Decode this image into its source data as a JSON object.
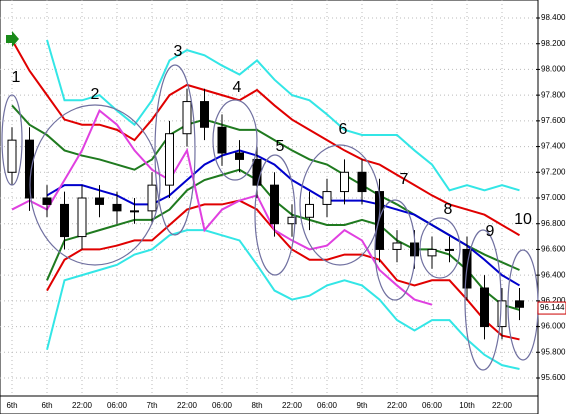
{
  "chart_data": {
    "type": "candlestick",
    "categories": [
      "6th",
      null,
      "6th",
      null,
      "22:00",
      null,
      "06:00",
      null,
      "7th",
      null,
      "22:00",
      null,
      "06:00",
      null,
      "8th",
      null,
      "22:00",
      null,
      "06:00",
      null,
      "9th",
      null,
      "22:00",
      null,
      "06:00",
      null,
      "10th",
      null,
      "22:00",
      null
    ],
    "open": [
      97.2,
      97.45,
      97.0,
      96.95,
      96.7,
      97.0,
      96.95,
      96.9,
      96.9,
      97.1,
      97.5,
      97.75,
      97.55,
      97.35,
      97.3,
      97.1,
      96.8,
      96.85,
      96.95,
      97.05,
      97.2,
      97.05,
      96.6,
      96.65,
      96.55,
      96.6,
      96.6,
      96.3,
      96.0,
      96.2
    ],
    "high": [
      97.55,
      97.55,
      97.1,
      97.05,
      97.1,
      97.1,
      97.05,
      97.0,
      97.2,
      97.6,
      97.85,
      97.85,
      97.65,
      97.45,
      97.4,
      97.2,
      96.95,
      97.05,
      97.15,
      97.3,
      97.3,
      97.15,
      96.75,
      96.75,
      96.7,
      96.7,
      96.7,
      96.4,
      96.3,
      96.3
    ],
    "low": [
      97.1,
      96.9,
      96.85,
      96.6,
      96.6,
      96.85,
      96.8,
      96.8,
      96.8,
      97.0,
      97.4,
      97.45,
      97.25,
      97.2,
      97.0,
      96.7,
      96.7,
      96.75,
      96.85,
      96.95,
      96.95,
      96.5,
      96.5,
      96.45,
      96.45,
      96.5,
      96.2,
      95.9,
      95.9,
      96.05
    ],
    "close": [
      97.45,
      97.0,
      96.95,
      96.7,
      97.0,
      96.95,
      96.9,
      96.9,
      97.1,
      97.5,
      97.75,
      97.55,
      97.35,
      97.3,
      97.1,
      96.8,
      96.85,
      96.95,
      97.05,
      97.2,
      97.05,
      96.6,
      96.65,
      96.55,
      96.6,
      96.6,
      96.3,
      96.0,
      96.2,
      96.15
    ],
    "series": [
      {
        "color": "#33e6e6",
        "values": [
          null,
          null,
          98.23,
          97.76,
          97.76,
          97.8,
          97.68,
          97.57,
          97.76,
          98.07,
          98.15,
          98.11,
          98.03,
          97.96,
          98.07,
          97.92,
          97.8,
          97.76,
          97.65,
          97.53,
          97.49,
          97.49,
          97.49,
          97.37,
          97.26,
          97.06,
          97.1,
          97.06,
          97.1,
          97.06
        ]
      },
      {
        "color": "#e00000",
        "values": [
          98.23,
          97.99,
          97.8,
          97.61,
          97.57,
          97.57,
          97.53,
          97.45,
          97.61,
          97.8,
          97.88,
          97.84,
          97.8,
          97.76,
          97.84,
          97.72,
          97.61,
          97.53,
          97.45,
          97.37,
          97.3,
          97.26,
          97.18,
          97.1,
          97.02,
          96.95,
          96.91,
          96.87,
          96.79,
          96.71
        ]
      },
      {
        "color": "#1f7a1f",
        "values": [
          97.72,
          97.57,
          97.49,
          97.37,
          97.33,
          97.3,
          97.26,
          97.22,
          97.3,
          97.49,
          97.57,
          97.61,
          97.57,
          97.53,
          97.53,
          97.45,
          97.37,
          97.3,
          97.26,
          97.18,
          97.1,
          97.02,
          96.95,
          96.87,
          96.79,
          96.71,
          96.63,
          96.56,
          96.5,
          96.44
        ]
      },
      {
        "color": "#0000cc",
        "values": [
          null,
          null,
          97.02,
          97.1,
          97.1,
          97.06,
          97.02,
          96.95,
          96.95,
          97.02,
          97.14,
          97.26,
          97.33,
          97.37,
          97.33,
          97.26,
          97.14,
          97.06,
          96.98,
          96.98,
          96.98,
          96.95,
          96.91,
          96.87,
          96.79,
          96.71,
          96.63,
          96.52,
          96.4,
          96.32
        ]
      },
      {
        "color": "#1f7a1f",
        "values": [
          null,
          null,
          96.36,
          96.67,
          96.71,
          96.75,
          96.79,
          96.83,
          96.83,
          96.91,
          97.06,
          97.14,
          97.18,
          97.22,
          97.14,
          96.98,
          96.87,
          96.83,
          96.79,
          96.79,
          96.83,
          96.79,
          96.67,
          96.6,
          96.6,
          96.56,
          96.44,
          96.28,
          96.17,
          96.13
        ]
      },
      {
        "color": "#e00000",
        "values": [
          null,
          null,
          96.28,
          96.52,
          96.6,
          96.6,
          96.63,
          96.67,
          96.67,
          96.79,
          96.91,
          96.95,
          96.95,
          96.98,
          96.91,
          96.75,
          96.6,
          96.52,
          96.52,
          96.56,
          96.56,
          96.52,
          96.36,
          96.32,
          96.36,
          96.36,
          96.21,
          96.05,
          95.93,
          95.9
        ]
      },
      {
        "color": "#33e6e6",
        "values": [
          null,
          null,
          95.82,
          96.36,
          96.4,
          96.44,
          96.48,
          96.56,
          96.6,
          96.71,
          96.75,
          96.75,
          96.71,
          96.67,
          96.48,
          96.28,
          96.21,
          96.24,
          96.32,
          96.36,
          96.32,
          96.21,
          96.05,
          95.97,
          96.05,
          96.05,
          95.9,
          95.78,
          95.7,
          95.67
        ]
      },
      {
        "color": "#e040e0",
        "values": [
          96.91,
          96.98,
          96.91,
          97.14,
          97.37,
          97.68,
          97.57,
          97.37,
          97.22,
          97.14,
          97.37,
          96.75,
          96.91,
          96.98,
          97.02,
          96.75,
          96.67,
          96.6,
          96.63,
          96.75,
          96.67,
          96.44,
          96.32,
          96.21,
          96.17,
          null,
          null,
          null,
          null,
          null
        ]
      }
    ],
    "ylim": [
      95.6,
      98.4
    ],
    "yticks": [
      {
        "value": 95.6,
        "label": "95.600"
      },
      {
        "value": 95.8,
        "label": "95.800"
      },
      {
        "value": 96.0,
        "label": "96.000"
      },
      {
        "value": 96.2,
        "label": "96.200"
      },
      {
        "value": 96.4,
        "label": "96.400"
      },
      {
        "value": 96.6,
        "label": "96.600"
      },
      {
        "value": 96.8,
        "label": "96.800"
      },
      {
        "value": 97.0,
        "label": "97.000"
      },
      {
        "value": 97.2,
        "label": "97.200"
      },
      {
        "value": 97.4,
        "label": "97.400"
      },
      {
        "value": 97.6,
        "label": "97.600"
      },
      {
        "value": 97.8,
        "label": "97.800"
      },
      {
        "value": 98.0,
        "label": "98.000"
      },
      {
        "value": 98.2,
        "label": "98.200"
      },
      {
        "value": 98.4,
        "label": "98.400"
      }
    ],
    "last_price": 96.144,
    "grid": true,
    "annotations": [
      "1",
      "2",
      "3",
      "4",
      "5",
      "6",
      "7",
      "8",
      "9",
      "10"
    ]
  }
}
